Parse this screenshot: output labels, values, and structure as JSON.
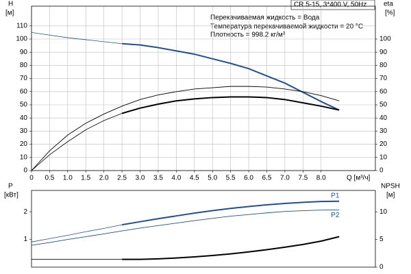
{
  "chart_data": [
    {
      "type": "line",
      "annotations": [
        "CR 5-15, 3*400 V, 50Hz",
        "Перекачиваемая жидкость = Вода",
        "Температура перекачиваемой жидкости = 20 °C",
        "Плотность = 998.2 кг/м³"
      ],
      "y_label": "H",
      "y_unit": "[м]",
      "y2_label": "eta",
      "y2_unit": "[%]",
      "x_label": "Q [м³/ч]",
      "x": [
        0,
        0.5,
        1,
        1.5,
        2,
        2.5,
        3,
        3.5,
        4,
        4.5,
        5,
        5.5,
        6,
        6.5,
        7,
        7.5,
        8,
        8.5
      ],
      "xlim": [
        0,
        9.5
      ],
      "xticks": [
        0,
        0.5,
        {
          "value": 1,
          "label": "1.0"
        },
        1.5,
        {
          "value": 2,
          "label": "2.0"
        },
        2.5,
        {
          "value": 3,
          "label": "3.0"
        },
        3.5,
        {
          "value": 4,
          "label": "4.0"
        },
        4.5,
        {
          "value": 5,
          "label": "5.0"
        },
        5.5,
        {
          "value": 6,
          "label": "6.0"
        },
        6.5,
        {
          "value": 7,
          "label": "7.0"
        },
        7.5,
        {
          "value": 8,
          "label": "8.0"
        }
      ],
      "ylim": [
        0,
        125
      ],
      "yticks": [
        0,
        10,
        20,
        30,
        40,
        50,
        60,
        70,
        80,
        90,
        100,
        110
      ],
      "y2lim": [
        0,
        125
      ],
      "y2ticks": [
        0,
        10,
        20,
        30,
        40,
        50,
        60,
        70,
        80,
        90,
        100
      ],
      "grid": true,
      "series": [
        {
          "color": "#1f4e96",
          "bold_from": 2.5,
          "values": [
            105,
            103,
            101,
            99.5,
            98,
            96.5,
            95.5,
            93.5,
            91,
            88.5,
            85,
            81.5,
            77.5,
            72,
            66.5,
            59.5,
            52.5,
            46
          ]
        },
        {
          "color": "#000000",
          "axis": "y2",
          "values": [
            0,
            15,
            27,
            36,
            43,
            49,
            54,
            57.5,
            60,
            62,
            63,
            64,
            64,
            63.5,
            62,
            60,
            57,
            53
          ]
        },
        {
          "color": "#000000",
          "axis": "y2",
          "bold_from": 2.5,
          "values": [
            0,
            12,
            22,
            31,
            38,
            43.5,
            47.5,
            50.5,
            53,
            54.5,
            55.5,
            56,
            56,
            55.5,
            54,
            51.5,
            49,
            46
          ]
        }
      ]
    },
    {
      "type": "line",
      "y_label": "P",
      "y_unit": "[кВт]",
      "y2_label": "NPSH",
      "y2_unit": "[м]",
      "x": [
        0,
        0.5,
        1,
        1.5,
        2,
        2.5,
        3,
        3.5,
        4,
        4.5,
        5,
        5.5,
        6,
        6.5,
        7,
        7.5,
        8,
        8.5
      ],
      "xlim": [
        0,
        9.5
      ],
      "ylim": [
        0,
        2.77
      ],
      "yticks": [
        1,
        2
      ],
      "y2lim": [
        0,
        13.85
      ],
      "y2ticks": [
        0,
        5,
        10
      ],
      "grid": false,
      "series": [
        {
          "name": "P1",
          "color": "#1f4e96",
          "bold_from": 2.5,
          "values": [
            0.91,
            1.03,
            1.15,
            1.28,
            1.4,
            1.53,
            1.64,
            1.75,
            1.85,
            1.95,
            2.04,
            2.12,
            2.19,
            2.25,
            2.3,
            2.34,
            2.37,
            2.38
          ]
        },
        {
          "name": "P2",
          "color": "#1f4e96",
          "values": [
            0.79,
            0.89,
            1.0,
            1.1,
            1.2,
            1.31,
            1.41,
            1.5,
            1.59,
            1.68,
            1.76,
            1.84,
            1.9,
            1.96,
            2.01,
            2.04,
            2.06,
            2.07
          ]
        },
        {
          "color": "#000000",
          "axis": "y2",
          "bold_from": 2.5,
          "values": [
            1.4,
            1.4,
            1.4,
            1.4,
            1.4,
            1.4,
            1.4,
            1.5,
            1.65,
            1.85,
            2.1,
            2.4,
            2.75,
            3.15,
            3.6,
            4.1,
            4.7,
            5.5
          ]
        }
      ]
    }
  ]
}
